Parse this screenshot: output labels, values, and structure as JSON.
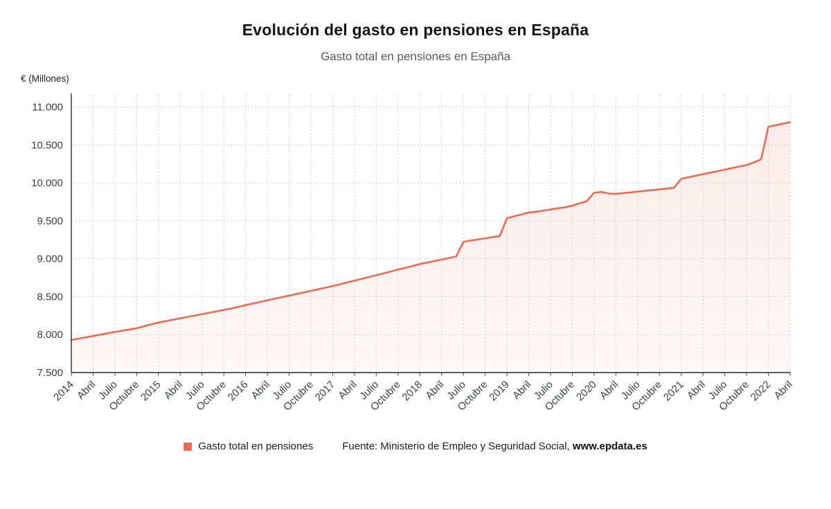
{
  "header": {
    "title": "Evolución del gasto en pensiones en España",
    "subtitle": "Gasto total en pensiones en España"
  },
  "axes": {
    "y_title": "€ (Millones)"
  },
  "legend": {
    "label": "Gasto total en pensiones"
  },
  "footer": {
    "source_prefix": "Fuente: Ministerio de Empleo y Seguridad Social, ",
    "source_site": "www.epdata.es"
  },
  "chart_data": {
    "type": "area",
    "title": "Evolución del gasto en pensiones en España",
    "subtitle": "Gasto total en pensiones en España",
    "ylabel": "€ (Millones)",
    "xlabel": "",
    "grid": true,
    "legend_position": "bottom",
    "line_color": "#ea6a52",
    "area_top": "rgba(234,106,82,0.13)",
    "area_bottom": "rgba(234,106,82,0.05)",
    "ylim": [
      7500,
      11000
    ],
    "ylim_display": [
      7500,
      11160
    ],
    "y_ticks": [
      7500,
      8000,
      8500,
      9000,
      9500,
      10000,
      10500,
      11000
    ],
    "y_tick_labels": [
      "7.500",
      "8.000",
      "8.500",
      "9.000",
      "9.500",
      "10.000",
      "10.500",
      "11.000"
    ],
    "x_tick_indices": [
      0,
      3,
      6,
      9,
      12,
      15,
      18,
      21,
      24,
      27,
      30,
      33,
      36,
      39,
      42,
      45,
      48,
      51,
      54,
      57,
      60,
      63,
      66,
      69,
      72,
      75,
      78,
      81,
      84,
      87,
      90,
      93,
      96,
      99
    ],
    "x_tick_labels": [
      "2014",
      "Abril",
      "Julio",
      "Octubre",
      "2015",
      "Abril",
      "Julio",
      "Octubre",
      "2016",
      "Abril",
      "Julio",
      "Octubre",
      "2017",
      "Abril",
      "Julio",
      "Octubre",
      "2018",
      "Abril",
      "Julio",
      "Octubre",
      "2019",
      "Abril",
      "Julio",
      "Octubre",
      "2020",
      "Abril",
      "Julio",
      "Octubre",
      "2021",
      "Abril",
      "Julio",
      "Octubre",
      "2022",
      "Abril"
    ],
    "x": [
      "Ene 2014",
      "Feb 2014",
      "Mar 2014",
      "Abr 2014",
      "May 2014",
      "Jun 2014",
      "Jul 2014",
      "Ago 2014",
      "Sep 2014",
      "Oct 2014",
      "Nov 2014",
      "Dic 2014",
      "Ene 2015",
      "Feb 2015",
      "Mar 2015",
      "Abr 2015",
      "May 2015",
      "Jun 2015",
      "Jul 2015",
      "Ago 2015",
      "Sep 2015",
      "Oct 2015",
      "Nov 2015",
      "Dic 2015",
      "Ene 2016",
      "Feb 2016",
      "Mar 2016",
      "Abr 2016",
      "May 2016",
      "Jun 2016",
      "Jul 2016",
      "Ago 2016",
      "Sep 2016",
      "Oct 2016",
      "Nov 2016",
      "Dic 2016",
      "Ene 2017",
      "Feb 2017",
      "Mar 2017",
      "Abr 2017",
      "May 2017",
      "Jun 2017",
      "Jul 2017",
      "Ago 2017",
      "Sep 2017",
      "Oct 2017",
      "Nov 2017",
      "Dic 2017",
      "Ene 2018",
      "Feb 2018",
      "Mar 2018",
      "Abr 2018",
      "May 2018",
      "Jun 2018",
      "Jul 2018",
      "Ago 2018",
      "Sep 2018",
      "Oct 2018",
      "Nov 2018",
      "Dic 2018",
      "Ene 2019",
      "Feb 2019",
      "Mar 2019",
      "Abr 2019",
      "May 2019",
      "Jun 2019",
      "Jul 2019",
      "Ago 2019",
      "Sep 2019",
      "Oct 2019",
      "Nov 2019",
      "Dic 2019",
      "Ene 2020",
      "Feb 2020",
      "Mar 2020",
      "Abr 2020",
      "May 2020",
      "Jun 2020",
      "Jul 2020",
      "Ago 2020",
      "Sep 2020",
      "Oct 2020",
      "Nov 2020",
      "Dic 2020",
      "Ene 2021",
      "Feb 2021",
      "Mar 2021",
      "Abr 2021",
      "May 2021",
      "Jun 2021",
      "Jul 2021",
      "Ago 2021",
      "Sep 2021",
      "Oct 2021",
      "Nov 2021",
      "Dic 2021",
      "Ene 2022",
      "Feb 2022",
      "Mar 2022",
      "Abr 2022"
    ],
    "series": [
      {
        "name": "Gasto total en pensiones",
        "values": [
          7930,
          7948,
          7965,
          7982,
          8000,
          8018,
          8035,
          8052,
          8068,
          8085,
          8110,
          8135,
          8160,
          8178,
          8197,
          8215,
          8234,
          8252,
          8270,
          8289,
          8307,
          8326,
          8344,
          8367,
          8390,
          8410,
          8431,
          8452,
          8473,
          8494,
          8515,
          8536,
          8556,
          8577,
          8598,
          8619,
          8640,
          8664,
          8688,
          8712,
          8736,
          8760,
          8784,
          8808,
          8833,
          8857,
          8881,
          8905,
          8930,
          8950,
          8970,
          8990,
          9010,
          9030,
          9225,
          9240,
          9255,
          9270,
          9285,
          9300,
          9535,
          9560,
          9585,
          9610,
          9620,
          9635,
          9650,
          9665,
          9680,
          9700,
          9730,
          9760,
          9870,
          9880,
          9860,
          9855,
          9865,
          9875,
          9885,
          9895,
          9905,
          9915,
          9925,
          9935,
          10055,
          10075,
          10095,
          10115,
          10135,
          10155,
          10175,
          10195,
          10215,
          10235,
          10270,
          10310,
          10740,
          10760,
          10780,
          10800
        ]
      }
    ]
  }
}
